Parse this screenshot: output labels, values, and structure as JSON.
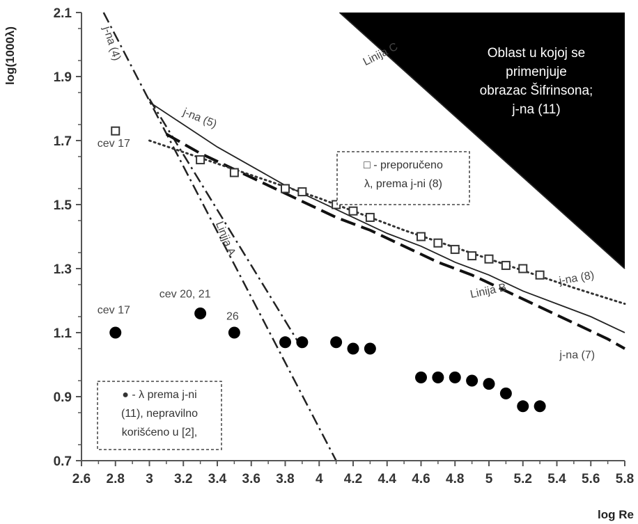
{
  "chart_data": {
    "type": "scatter",
    "xlabel": "log Re",
    "ylabel": "log(1000λ)",
    "xlim": [
      2.6,
      5.8
    ],
    "ylim": [
      0.7,
      2.1
    ],
    "x_ticks": [
      "2.6",
      "2.8",
      "3",
      "3.2",
      "3.4",
      "3.6",
      "3.8",
      "4",
      "4.2",
      "4.4",
      "4.6",
      "4.8",
      "5",
      "5.2",
      "5.4",
      "5.6",
      "5.8"
    ],
    "y_ticks": [
      "0.7",
      "0.9",
      "1.1",
      "1.3",
      "1.5",
      "1.7",
      "1.9",
      "2.1"
    ],
    "grid": false,
    "region": {
      "polygon": [
        [
          4.12,
          2.1
        ],
        [
          5.8,
          2.1
        ],
        [
          5.8,
          1.3
        ]
      ],
      "color": "#000000",
      "text": [
        "Oblast u kojoj se",
        "primenjuje",
        "obrazac Šifrinsona;",
        "j-na (11)"
      ]
    },
    "series": [
      {
        "name": "□ - preporučeno λ, prema j-ni (8)",
        "kind": "square-markers",
        "x": [
          2.8,
          3.3,
          3.5,
          3.8,
          3.9,
          4.1,
          4.2,
          4.3,
          4.6,
          4.7,
          4.8,
          4.9,
          5.0,
          5.1,
          5.2,
          5.3
        ],
        "y": [
          1.73,
          1.64,
          1.6,
          1.55,
          1.54,
          1.5,
          1.48,
          1.46,
          1.4,
          1.38,
          1.36,
          1.34,
          1.33,
          1.31,
          1.3,
          1.28
        ]
      },
      {
        "name": "● - λ prema j-ni (11), nepravilno korišćeno u [2],",
        "kind": "circle-markers",
        "x": [
          2.8,
          3.3,
          3.5,
          3.8,
          3.9,
          4.1,
          4.2,
          4.3,
          4.6,
          4.7,
          4.8,
          4.9,
          5.0,
          5.1,
          5.2,
          5.3
        ],
        "y": [
          1.1,
          1.16,
          1.1,
          1.07,
          1.07,
          1.07,
          1.05,
          1.05,
          0.96,
          0.96,
          0.96,
          0.95,
          0.94,
          0.91,
          0.87,
          0.87
        ]
      }
    ],
    "lines": [
      {
        "name": "j-na (4)",
        "style": "dash-dot",
        "x": [
          2.73,
          4.1
        ],
        "y": [
          2.1,
          0.7
        ]
      },
      {
        "name": "Linija A",
        "style": "dash-dot",
        "x": [
          3.0,
          3.9
        ],
        "y": [
          1.83,
          1.05
        ]
      },
      {
        "name": "Linija C",
        "style": "solid",
        "x": [
          4.12,
          5.8
        ],
        "y": [
          2.1,
          1.3
        ]
      },
      {
        "name": "j-na (5)",
        "style": "solid",
        "x": [
          3.0,
          3.2,
          3.4,
          3.6,
          3.8,
          4.0,
          4.2,
          4.4,
          4.6,
          4.8,
          5.0,
          5.2,
          5.4,
          5.6,
          5.8
        ],
        "y": [
          1.82,
          1.75,
          1.68,
          1.62,
          1.56,
          1.51,
          1.46,
          1.41,
          1.37,
          1.32,
          1.28,
          1.23,
          1.19,
          1.15,
          1.1
        ]
      },
      {
        "name": "j-na (7)",
        "style": "dashed",
        "x": [
          3.1,
          3.3,
          3.5,
          3.7,
          3.9,
          4.1,
          4.3,
          4.5,
          4.7,
          4.9,
          5.1,
          5.3,
          5.5,
          5.7,
          5.8
        ],
        "y": [
          1.72,
          1.66,
          1.61,
          1.56,
          1.51,
          1.46,
          1.42,
          1.37,
          1.32,
          1.28,
          1.23,
          1.18,
          1.13,
          1.08,
          1.05
        ]
      },
      {
        "name": "j-na (8)",
        "style": "dotted",
        "x": [
          3.0,
          3.5,
          4.0,
          4.5,
          5.0,
          5.5,
          5.8
        ],
        "y": [
          1.7,
          1.61,
          1.52,
          1.42,
          1.33,
          1.24,
          1.19
        ]
      }
    ],
    "annotations": [
      {
        "id": "cev17_a",
        "text": "cev 17",
        "x": 2.79,
        "y": 1.68
      },
      {
        "id": "cev17_b",
        "text": "cev 17",
        "x": 2.79,
        "y": 1.16
      },
      {
        "id": "cev2021",
        "text": "cev 20, 21",
        "x": 3.21,
        "y": 1.21
      },
      {
        "id": "p26",
        "text": "26",
        "x": 3.49,
        "y": 1.14
      },
      {
        "id": "jna4",
        "text": "j-na (4)",
        "x": 2.76,
        "y": 2.0
      },
      {
        "id": "jna5",
        "text": "j-na (5)",
        "x": 3.29,
        "y": 1.76
      },
      {
        "id": "linijaA",
        "text": "Linija A",
        "x": 3.43,
        "y": 1.39
      },
      {
        "id": "linijaB",
        "text": "Linija B",
        "x": 5.0,
        "y": 1.22
      },
      {
        "id": "linijaC",
        "text": "Linija C",
        "x": 4.37,
        "y": 1.96
      },
      {
        "id": "jna8",
        "text": "j-na (8)",
        "x": 5.52,
        "y": 1.26
      },
      {
        "id": "jna7",
        "text": "j-na (7)",
        "x": 5.52,
        "y": 1.02
      }
    ],
    "legend_boxes": [
      {
        "id": "box_sq",
        "lines": [
          "□ - preporučeno",
          "λ, prema j-ni (8)"
        ],
        "placement": "center-right"
      },
      {
        "id": "box_ci",
        "lines": [
          "● - λ prema j-ni",
          "(11), nepravilno",
          "korišćeno u [2],"
        ],
        "placement": "bottom-left"
      }
    ]
  }
}
